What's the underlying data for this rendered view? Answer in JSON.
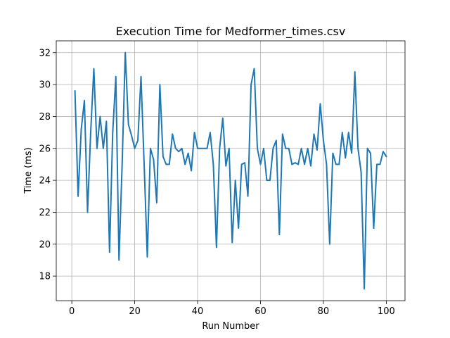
{
  "chart_data": {
    "type": "line",
    "title": "Execution Time for Medformer_times.csv",
    "xlabel": "Run Number",
    "ylabel": "Time (ms)",
    "xlim": [
      -4.95,
      105.95
    ],
    "ylim": [
      16.46,
      32.74
    ],
    "xticks": [
      0,
      20,
      40,
      60,
      80,
      100
    ],
    "yticks": [
      18,
      20,
      22,
      24,
      26,
      28,
      30,
      32
    ],
    "grid": true,
    "line_color": "#1f77b4",
    "series": [
      {
        "x": [
          1,
          2,
          3,
          4,
          5,
          6,
          7,
          8,
          9,
          10,
          11,
          12,
          13,
          14,
          15,
          16,
          17,
          18,
          19,
          20,
          21,
          22,
          23,
          24,
          25,
          26,
          27,
          28,
          29,
          30,
          31,
          32,
          33,
          34,
          35,
          36,
          37,
          38,
          39,
          40,
          41,
          42,
          43,
          44,
          45,
          46,
          47,
          48,
          49,
          50,
          51,
          52,
          53,
          54,
          55,
          56,
          57,
          58,
          59,
          60,
          61,
          62,
          63,
          64,
          65,
          66,
          67,
          68,
          69,
          70,
          71,
          72,
          73,
          74,
          75,
          76,
          77,
          78,
          79,
          80,
          81,
          82,
          83,
          84,
          85,
          86,
          87,
          88,
          89,
          90,
          91,
          92,
          93,
          94,
          95,
          96,
          97,
          98,
          99,
          100
        ],
        "y": [
          29.6,
          23.0,
          27.2,
          29.0,
          22.0,
          27.0,
          31.0,
          26.0,
          28.0,
          26.0,
          27.7,
          19.5,
          27.0,
          30.5,
          19.0,
          25.0,
          32.0,
          27.5,
          26.8,
          26.0,
          26.5,
          30.5,
          25.0,
          19.2,
          26.0,
          25.3,
          22.6,
          30.0,
          25.5,
          25.0,
          25.0,
          26.9,
          26.0,
          25.8,
          26.0,
          25.0,
          25.7,
          24.6,
          27.0,
          26.0,
          26.0,
          26.0,
          26.0,
          27.0,
          25.0,
          19.8,
          26.0,
          27.9,
          24.9,
          26.0,
          20.1,
          24.0,
          21.0,
          25.0,
          25.1,
          23.0,
          30.0,
          31.0,
          26.0,
          25.0,
          26.0,
          24.0,
          24.0,
          26.0,
          26.5,
          20.6,
          26.9,
          26.0,
          26.0,
          25.0,
          25.1,
          25.0,
          26.0,
          25.0,
          26.0,
          24.9,
          26.9,
          25.9,
          28.8,
          26.5,
          25.0,
          20.0,
          25.7,
          25.0,
          25.0,
          27.0,
          25.4,
          27.0,
          25.7,
          30.8,
          26.0,
          24.5,
          17.2,
          26.0,
          25.7,
          21.0,
          25.0,
          25.0,
          25.8,
          25.5
        ]
      }
    ]
  }
}
